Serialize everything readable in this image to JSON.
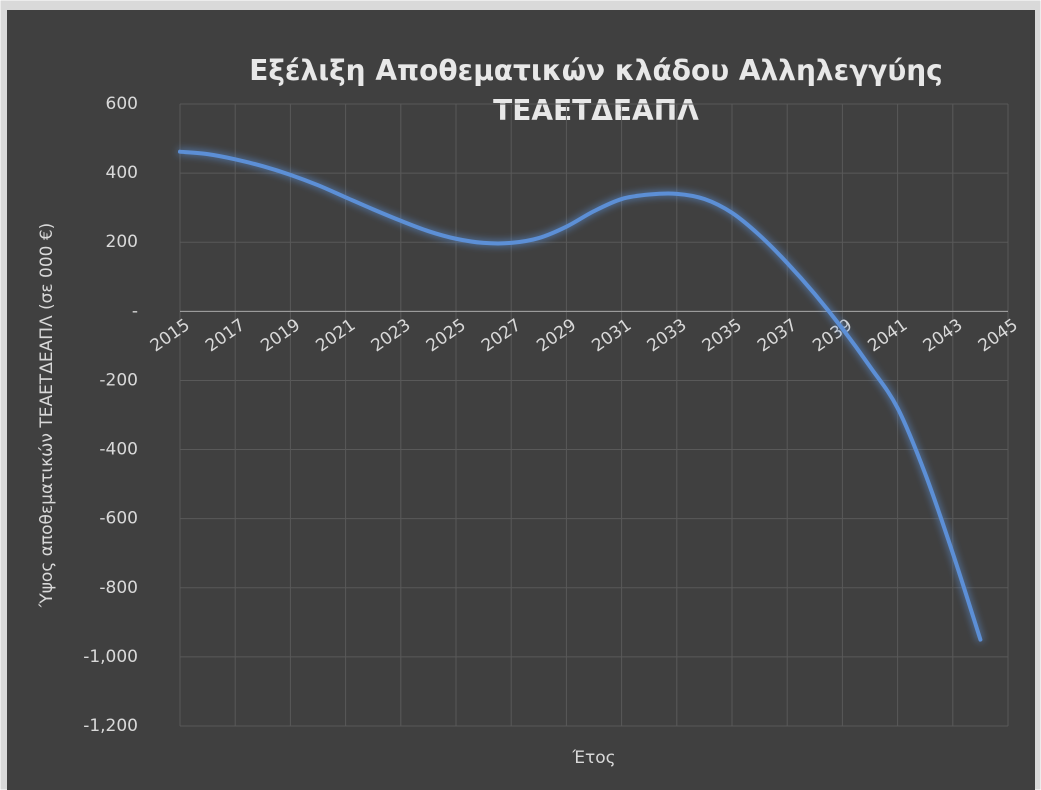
{
  "chart_data": {
    "type": "line",
    "title": [
      "Εξέλιξη Αποθεματικών κλάδου Αλληλεγγύης",
      "ΤΕΑΕΤΔΕΑΠΛ"
    ],
    "x_label": "Έτος",
    "y_label": "Ύψος αποθεματικών ΤΕΑΕΤΔΕΑΠΛ (σε 000 €)",
    "x": [
      2015,
      2016,
      2017,
      2018,
      2019,
      2020,
      2021,
      2022,
      2023,
      2024,
      2025,
      2026,
      2027,
      2028,
      2029,
      2030,
      2031,
      2032,
      2033,
      2034,
      2035,
      2036,
      2037,
      2038,
      2039,
      2040,
      2041,
      2042,
      2043,
      2044
    ],
    "series": [
      {
        "color": "#5b8fd6",
        "values": [
          462,
          455,
          440,
          420,
          395,
          365,
          330,
          295,
          262,
          232,
          210,
          198,
          198,
          212,
          245,
          290,
          325,
          338,
          340,
          325,
          285,
          220,
          140,
          50,
          -50,
          -160,
          -280,
          -470,
          -700,
          -950
        ]
      }
    ],
    "xlim": [
      2015,
      2045
    ],
    "xticks": [
      2015,
      2017,
      2019,
      2021,
      2023,
      2025,
      2027,
      2029,
      2031,
      2033,
      2035,
      2037,
      2039,
      2041,
      2043,
      2045
    ],
    "ylim": [
      -1200,
      600
    ],
    "yticks": [
      600,
      400,
      200,
      {
        "value": 0,
        "label": "-"
      },
      -200,
      -400,
      -600,
      -800,
      {
        "value": -1000,
        "label": "-1,000"
      },
      {
        "value": -1200,
        "label": "-1,200"
      }
    ],
    "grid": true
  }
}
